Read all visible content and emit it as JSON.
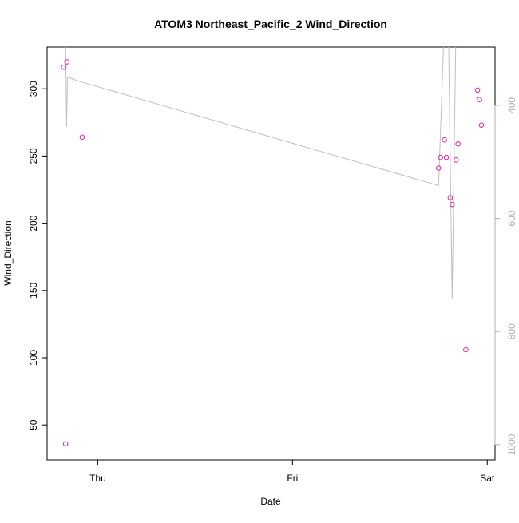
{
  "chart_data": {
    "type": "scatter",
    "title": "ATOM3 Northeast_Pacific_2 Wind_Direction",
    "xlabel": "Date",
    "ylabel": "Wind_Direction",
    "x_ticks": [
      {
        "label": "Thu",
        "value": 0
      },
      {
        "label": "Fri",
        "value": 1
      },
      {
        "label": "Sat",
        "value": 2
      }
    ],
    "xlim": [
      -0.26,
      2.04
    ],
    "y_ticks": [
      50,
      100,
      150,
      200,
      250,
      300
    ],
    "ylim": [
      24,
      331
    ],
    "y2_ticks": [
      400,
      600,
      800,
      1000
    ],
    "y2lim": [
      297,
      1027
    ],
    "grid": false,
    "colors": {
      "points": "#e0259e",
      "line": "#c0c0c0",
      "axis": "#000000",
      "right_axis": "#b0b0b0"
    },
    "series": [
      {
        "kind": "points",
        "x": [
          -0.175,
          -0.165,
          -0.158,
          -0.08,
          1.75,
          1.76,
          1.78,
          1.79,
          1.81,
          1.82,
          1.84,
          1.85,
          1.89,
          1.95,
          1.96,
          1.97
        ],
        "y": [
          316,
          36,
          320,
          264,
          241,
          249,
          262,
          249,
          219,
          214,
          247,
          259,
          106,
          299,
          292,
          273
        ]
      },
      {
        "kind": "line",
        "axis": "right",
        "x": [
          -0.172,
          -0.166,
          -0.16,
          -0.155,
          -0.1,
          1.75,
          1.78,
          1.8,
          1.82,
          1.84
        ],
        "y": [
          250,
          250,
          438,
          350,
          357,
          542,
          250,
          250,
          742,
          250
        ]
      }
    ]
  }
}
